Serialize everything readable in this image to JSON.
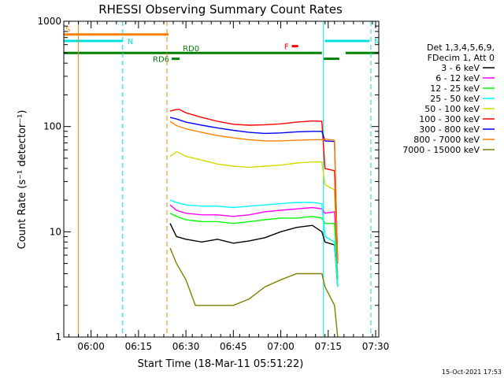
{
  "chart_data": {
    "type": "line",
    "title": "RHESSI Observing Summary Count Rates",
    "xlabel": "Start Time (18-Mar-11 05:51:22)",
    "ylabel": "Count Rate (s⁻¹ detector⁻¹)",
    "y_scale": "log",
    "ylim": [
      1,
      1000
    ],
    "xlim": [
      "05:51:22",
      "07:31:00"
    ],
    "x_ticks": [
      "06:00",
      "06:15",
      "06:30",
      "06:45",
      "07:00",
      "07:15",
      "07:30"
    ],
    "y_ticks": [
      "1",
      "10",
      "100",
      "1000"
    ],
    "legend_header": [
      "Det 1,3,4,5,6,9,",
      "FDecim 1, Att 0"
    ],
    "legend_position": "right",
    "timestamp": "15-Oct-2021 17:53",
    "flags": [
      {
        "label": "S",
        "color": "#ff8000",
        "level": 750,
        "start": "05:51:22",
        "end": "06:24:30"
      },
      {
        "label": "N",
        "color": "#00e0e0",
        "level": 650,
        "start": "05:51:22",
        "end": "06:10:00"
      },
      {
        "label": "N",
        "color": "#00e0e0",
        "level": 650,
        "start": "07:14:00",
        "end": "07:28:00"
      },
      {
        "label": "F",
        "color": "#ff0000",
        "level": 580,
        "start": "07:03:30",
        "end": "07:05:30"
      },
      {
        "label": "RD0",
        "color": "#008000",
        "level": 500,
        "start": "05:51:22",
        "end": "07:13:00"
      },
      {
        "label": "",
        "color": "#008000",
        "level": 500,
        "start": "07:20:30",
        "end": "07:31:00"
      },
      {
        "label": "RD6",
        "color": "#008000",
        "level": 440,
        "start": "06:25:30",
        "end": "06:28:00"
      },
      {
        "label": "",
        "color": "#008000",
        "level": 440,
        "start": "07:13:30",
        "end": "07:18:30"
      }
    ],
    "vlines": [
      {
        "t": "05:56:00",
        "color": "#ff8000",
        "style": "solid"
      },
      {
        "t": "06:24:00",
        "color": "#ff8000",
        "style": "dashed"
      },
      {
        "t": "06:10:00",
        "color": "#00e0e0",
        "style": "dashed"
      },
      {
        "t": "07:13:30",
        "color": "#00e0e0",
        "style": "solid"
      },
      {
        "t": "07:28:30",
        "color": "#00e0e0",
        "style": "dashed"
      }
    ],
    "series": [
      {
        "name": "3 - 6 keV",
        "color": "#000000",
        "x": [
          "06:25:00",
          "06:27:00",
          "06:30:00",
          "06:35:00",
          "06:40:00",
          "06:45:00",
          "06:50:00",
          "06:55:00",
          "07:00:00",
          "07:05:00",
          "07:10:00",
          "07:13:00",
          "07:14:00",
          "07:17:00",
          "07:18:00"
        ],
        "y": [
          12,
          9,
          8.5,
          8,
          8.5,
          7.8,
          8.2,
          8.8,
          10,
          11,
          11.5,
          10,
          8,
          7.5,
          3
        ]
      },
      {
        "name": "6 - 12 keV",
        "color": "#ff00ff",
        "x": [
          "06:25:00",
          "06:27:00",
          "06:30:00",
          "06:35:00",
          "06:40:00",
          "06:45:00",
          "06:50:00",
          "06:55:00",
          "07:00:00",
          "07:05:00",
          "07:10:00",
          "07:13:00",
          "07:14:00",
          "07:17:00",
          "07:18:00"
        ],
        "y": [
          18,
          16,
          15,
          14.5,
          14.5,
          14,
          14.5,
          15.5,
          16,
          16.5,
          17,
          16.5,
          15,
          15.5,
          3.5
        ]
      },
      {
        "name": "12 - 25 keV",
        "color": "#00ff00",
        "x": [
          "06:25:00",
          "06:27:00",
          "06:30:00",
          "06:35:00",
          "06:40:00",
          "06:45:00",
          "06:50:00",
          "06:55:00",
          "07:00:00",
          "07:05:00",
          "07:10:00",
          "07:13:00",
          "07:14:00",
          "07:17:00",
          "07:18:00"
        ],
        "y": [
          15,
          14,
          13,
          12.5,
          12.5,
          12,
          12.5,
          13,
          13.5,
          13.5,
          14,
          13.5,
          12,
          12,
          3.5
        ]
      },
      {
        "name": "25 - 50 keV",
        "color": "#00ffff",
        "x": [
          "06:25:00",
          "06:27:00",
          "06:30:00",
          "06:35:00",
          "06:40:00",
          "06:45:00",
          "06:50:00",
          "06:55:00",
          "07:00:00",
          "07:05:00",
          "07:10:00",
          "07:13:00",
          "07:14:00",
          "07:17:00",
          "07:18:00"
        ],
        "y": [
          20,
          19,
          18,
          17.5,
          17.5,
          17,
          17.5,
          18,
          18.5,
          19,
          19,
          18.5,
          9,
          8,
          3
        ]
      },
      {
        "name": "50 - 100 keV",
        "color": "#d8d800",
        "x": [
          "06:25:00",
          "06:26:30",
          "06:27:00",
          "06:30:00",
          "06:35:00",
          "06:40:00",
          "06:45:00",
          "06:50:00",
          "06:55:00",
          "07:00:00",
          "07:05:00",
          "07:10:00",
          "07:13:00",
          "07:14:00",
          "07:17:00",
          "07:18:00"
        ],
        "y": [
          52,
          56,
          58,
          52,
          48,
          44,
          42,
          41,
          42,
          43,
          45,
          46,
          46,
          28,
          25,
          5
        ]
      },
      {
        "name": "100 - 300 keV",
        "color": "#ff0000",
        "x": [
          "06:25:00",
          "06:27:00",
          "06:28:00",
          "06:30:00",
          "06:35:00",
          "06:40:00",
          "06:45:00",
          "06:50:00",
          "06:55:00",
          "07:00:00",
          "07:05:00",
          "07:10:00",
          "07:13:00",
          "07:14:00",
          "07:17:00",
          "07:18:00"
        ],
        "y": [
          140,
          145,
          145,
          135,
          122,
          112,
          105,
          103,
          104,
          106,
          110,
          113,
          112,
          40,
          38,
          5
        ]
      },
      {
        "name": "300 - 800 keV",
        "color": "#0000ff",
        "x": [
          "06:25:00",
          "06:27:00",
          "06:30:00",
          "06:35:00",
          "06:40:00",
          "06:45:00",
          "06:50:00",
          "06:55:00",
          "07:00:00",
          "07:05:00",
          "07:10:00",
          "07:13:00",
          "07:14:00",
          "07:17:00",
          "07:18:00"
        ],
        "y": [
          122,
          118,
          110,
          103,
          97,
          92,
          88,
          86,
          87,
          89,
          90,
          90,
          73,
          72,
          5
        ]
      },
      {
        "name": "800 - 7000 keV",
        "color": "#ff8000",
        "x": [
          "06:25:00",
          "06:27:00",
          "06:30:00",
          "06:35:00",
          "06:40:00",
          "06:45:00",
          "06:50:00",
          "06:55:00",
          "07:00:00",
          "07:05:00",
          "07:10:00",
          "07:13:00",
          "07:14:00",
          "07:17:00",
          "07:18:00"
        ],
        "y": [
          112,
          102,
          95,
          88,
          82,
          78,
          75,
          73,
          73,
          74,
          75,
          75,
          76,
          74,
          5
        ]
      },
      {
        "name": "7000 - 15000 keV",
        "color": "#808000",
        "x": [
          "06:25:00",
          "06:27:00",
          "06:30:00",
          "06:33:00",
          "06:35:00",
          "06:40:00",
          "06:45:00",
          "06:50:00",
          "06:55:00",
          "07:00:00",
          "07:05:00",
          "07:10:00",
          "07:13:00",
          "07:14:00",
          "07:17:00",
          "07:18:00"
        ],
        "y": [
          7,
          5,
          3.5,
          2,
          2,
          2,
          2,
          2.3,
          3,
          3.5,
          4,
          4,
          4,
          3,
          2,
          1
        ]
      }
    ]
  }
}
